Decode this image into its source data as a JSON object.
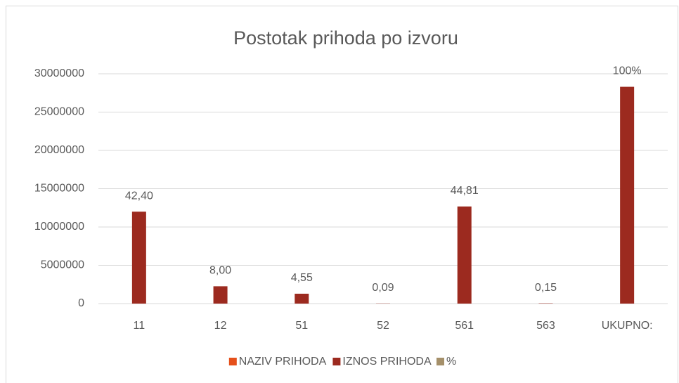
{
  "chart_data": {
    "type": "bar",
    "title": "Postotak prihoda po izvoru",
    "categories": [
      "11",
      "12",
      "51",
      "52",
      "561",
      "563",
      "UKUPNO:"
    ],
    "series": [
      {
        "name": "NAZIV PRIHODA",
        "color": "#e5501b",
        "values": [
          null,
          null,
          null,
          null,
          null,
          null,
          null
        ]
      },
      {
        "name": "IZNOS PRIHODA",
        "color": "#9c2a1f",
        "values": [
          12000000,
          2260000,
          1290000,
          25000,
          12680000,
          42000,
          28300000
        ]
      },
      {
        "name": "%",
        "color": "#a5906a",
        "values": [
          42.4,
          8,
          4.55,
          0.09,
          44.81,
          0.15,
          100
        ],
        "value_labels": [
          "42,40",
          "8,00",
          "4,55",
          "0,09",
          "44,81",
          "0,15",
          "100%"
        ]
      }
    ],
    "ylim": [
      0,
      30000000
    ],
    "yticks": [
      0,
      5000000,
      10000000,
      15000000,
      20000000,
      25000000,
      30000000
    ],
    "grid": true,
    "legend": "bottom"
  }
}
